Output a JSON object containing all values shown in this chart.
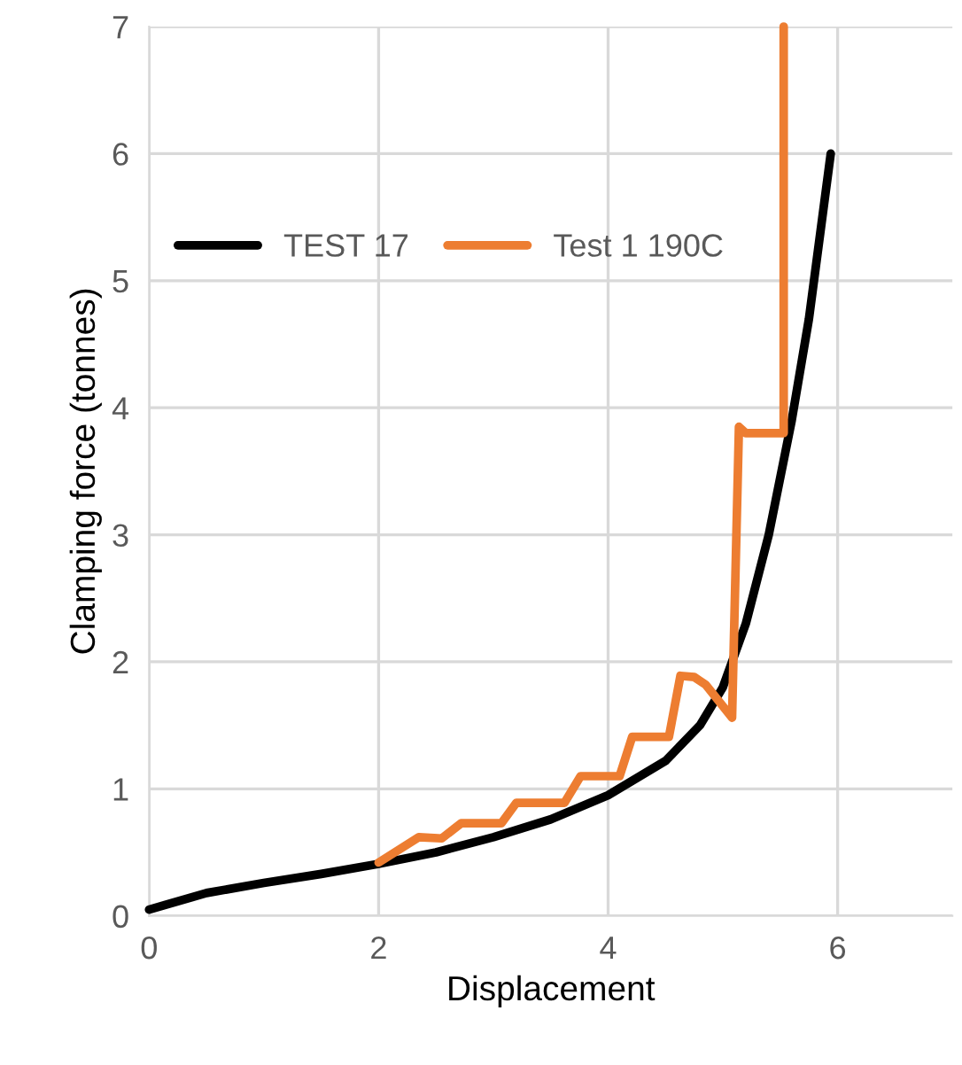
{
  "chart_data": {
    "type": "line",
    "xlabel": "Displacement",
    "ylabel": "Clamping force (tonnes)",
    "xlim": [
      0,
      7
    ],
    "xticks": [
      0,
      2,
      4,
      6
    ],
    "ylim": [
      0,
      7
    ],
    "yticks": [
      0,
      1,
      2,
      3,
      4,
      5,
      6,
      7
    ],
    "grid": true,
    "legend": "top left",
    "marker": "none",
    "line_style": "solid",
    "series": [
      {
        "name": "TEST 17",
        "color": "#000000",
        "x": [
          0,
          0.5,
          1,
          1.5,
          2,
          2.5,
          3,
          3.5,
          4,
          4.5,
          4.8,
          5,
          5.2,
          5.4,
          5.6,
          5.75,
          5.94
        ],
        "values": [
          0.05,
          0.18,
          0.26,
          0.33,
          0.41,
          0.5,
          0.62,
          0.76,
          0.95,
          1.22,
          1.5,
          1.8,
          2.3,
          3.0,
          3.9,
          4.7,
          6.0
        ]
      },
      {
        "name": "Test 1 190C",
        "color": "#ed7d31",
        "x": [
          2.0,
          2.35,
          2.55,
          2.72,
          3.07,
          3.2,
          3.62,
          3.76,
          4.1,
          4.21,
          4.53,
          4.63,
          4.75,
          4.85,
          5.08,
          5.14,
          5.2,
          5.53,
          5.53
        ],
        "values": [
          0.42,
          0.62,
          0.61,
          0.73,
          0.73,
          0.89,
          0.89,
          1.1,
          1.1,
          1.41,
          1.41,
          1.89,
          1.88,
          1.82,
          1.56,
          3.85,
          3.8,
          3.8,
          7.0
        ]
      }
    ]
  }
}
